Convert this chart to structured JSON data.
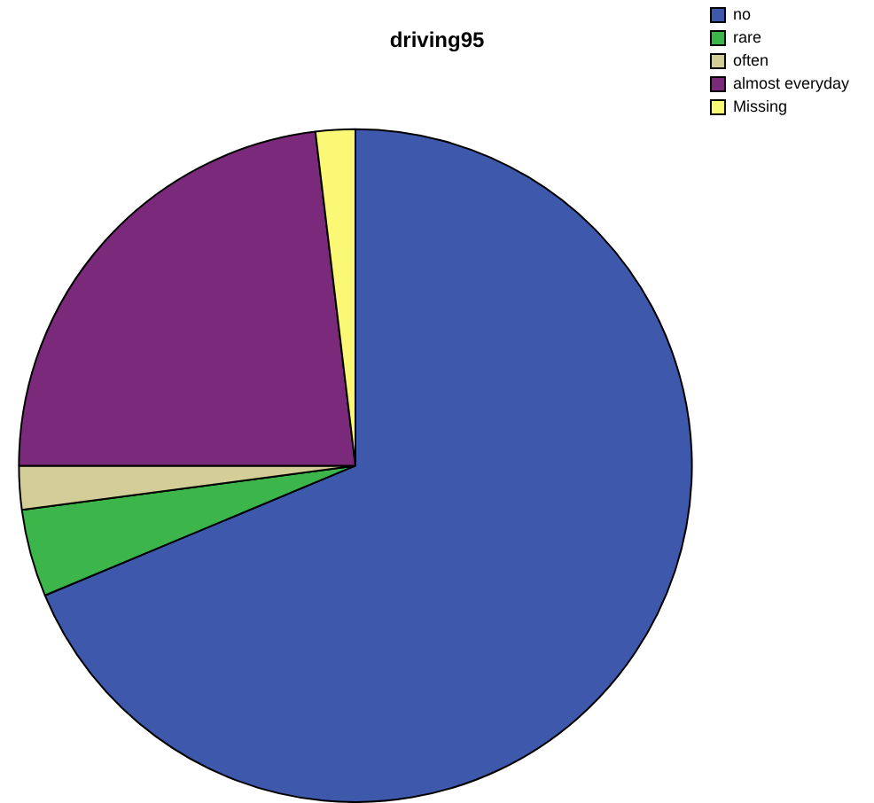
{
  "chart_data": {
    "type": "pie",
    "title": "driving95",
    "categories": [
      "no",
      "rare",
      "often",
      "almost everyday",
      "Missing"
    ],
    "values": [
      68.7,
      4.2,
      2.1,
      23.1,
      1.9
    ],
    "colors": [
      "#3e58ac",
      "#3cb64a",
      "#d3ce97",
      "#7b2a7b",
      "#fbf875"
    ],
    "legend": "top right"
  }
}
